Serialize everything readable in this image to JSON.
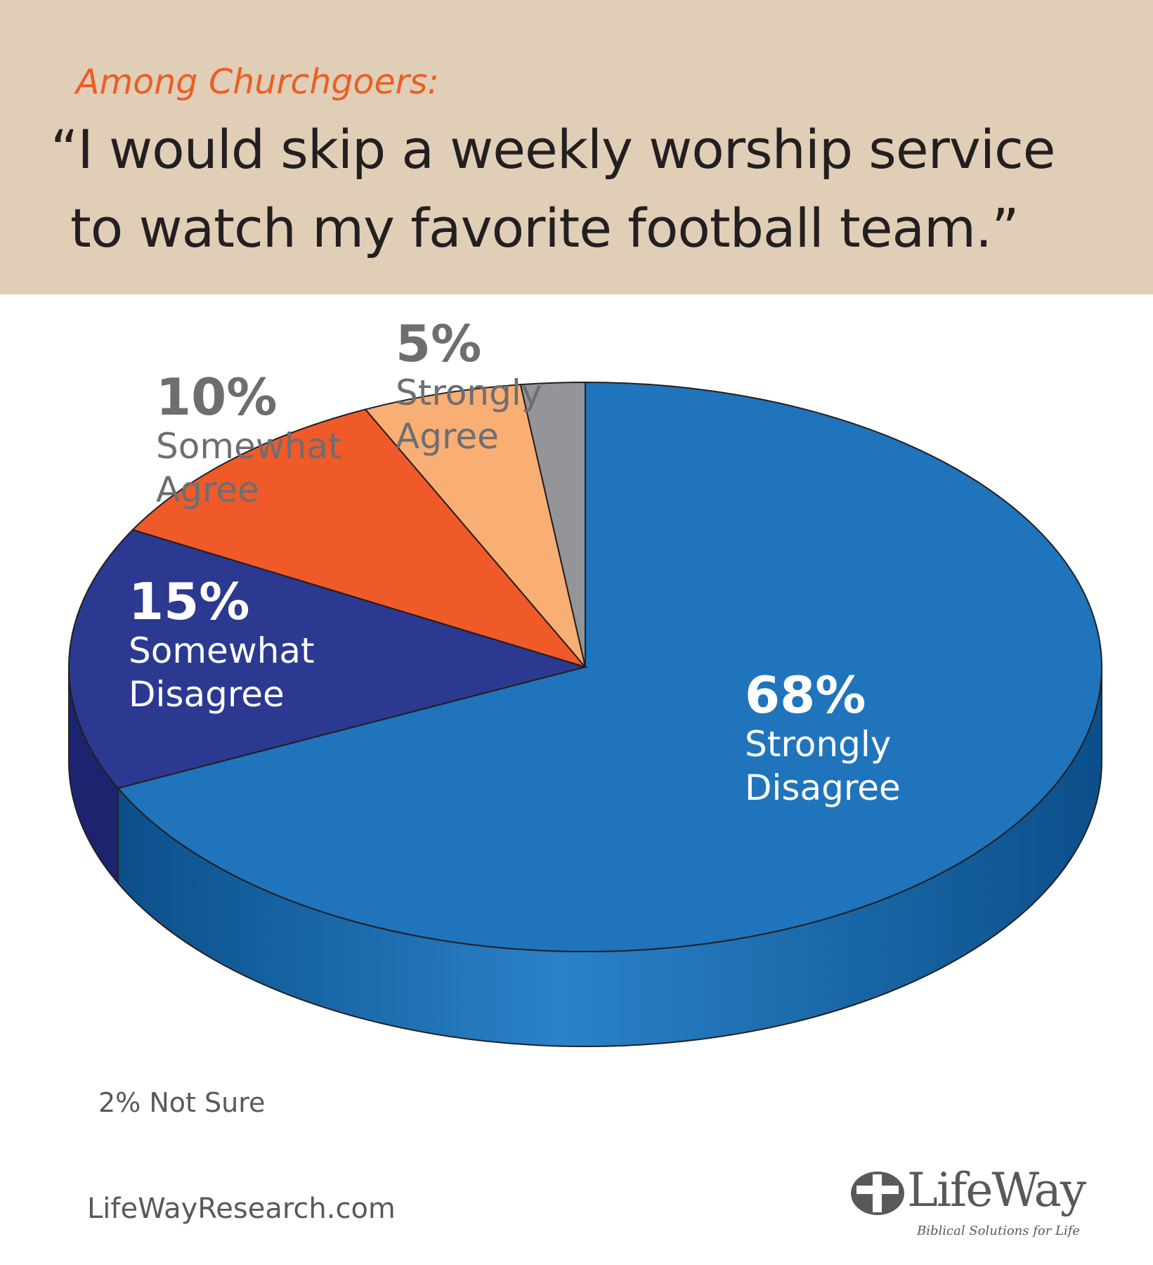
{
  "header": {
    "subtitle": "Among Churchgoers:",
    "title_line1": "“I would skip a weekly worship service",
    "title_line2": "to watch my favorite football team.”"
  },
  "chart_data": {
    "type": "pie",
    "title": "“I would skip a weekly worship service to watch my favorite football team.”",
    "slices": [
      {
        "label_line1": "Strongly",
        "label_line2": "Disagree",
        "pct": "68%",
        "value": 68,
        "color": "#1f74bc"
      },
      {
        "label_line1": "Somewhat",
        "label_line2": "Disagree",
        "pct": "15%",
        "value": 15,
        "color": "#2b3990"
      },
      {
        "label_line1": "Somewhat",
        "label_line2": "Agree",
        "pct": "10%",
        "value": 10,
        "color": "#f05a28"
      },
      {
        "label_line1": "Strongly",
        "label_line2": "Agree",
        "pct": "5%",
        "value": 5,
        "color": "#f9ae74"
      },
      {
        "label_line1": "",
        "label_line2": "",
        "pct": "",
        "value": 2,
        "color": "#939598"
      }
    ],
    "note": "2% Not Sure"
  },
  "footer": {
    "website": "LifeWayResearch.com",
    "logo_text": "LifeWay",
    "logo_tagline": "Biblical Solutions for Life"
  },
  "colors": {
    "header_bg": "#e0ceb7",
    "accent": "#ec5e24",
    "text_dark": "#231f20",
    "text_gray": "#58595b"
  }
}
